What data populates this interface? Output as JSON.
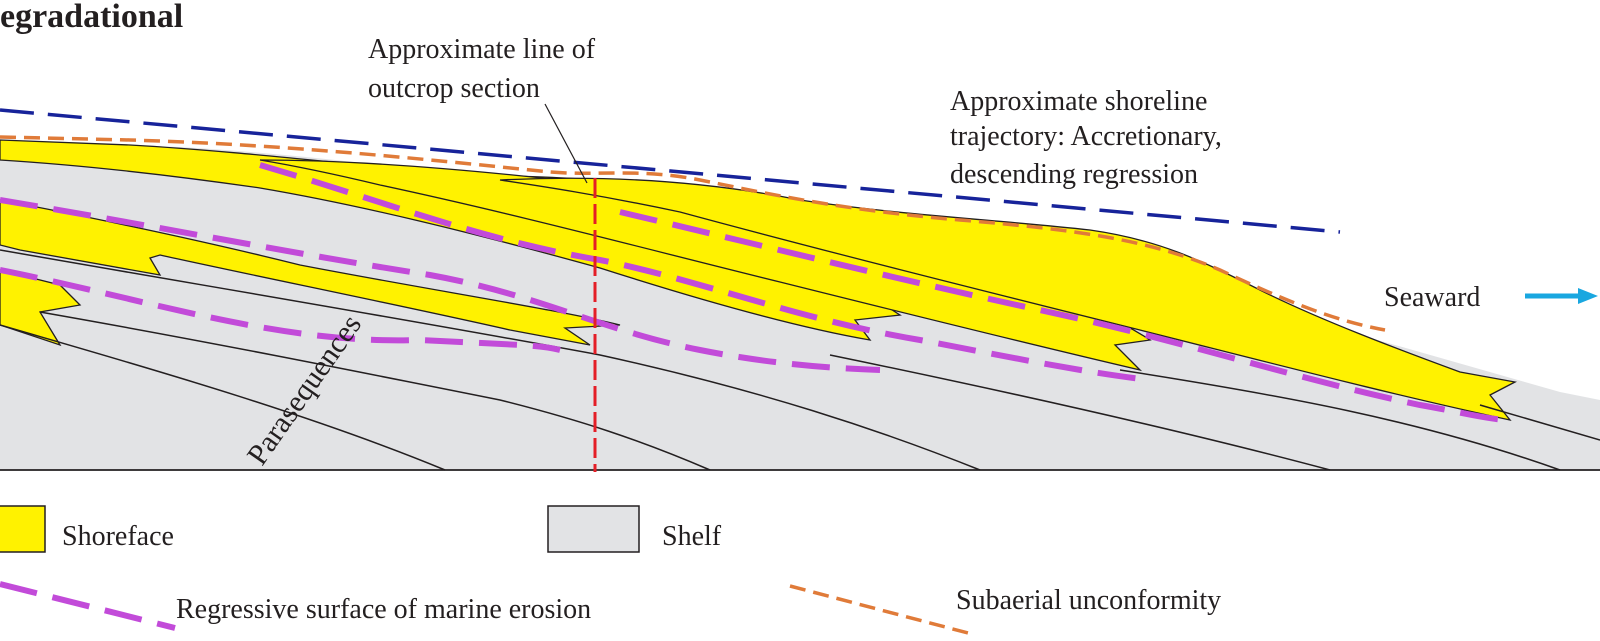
{
  "diagram": {
    "title": "egradational",
    "annotations": {
      "outcrop_line": [
        "Approximate line of",
        "outcrop section"
      ],
      "shoreline_trajectory": [
        "Approximate shoreline",
        "trajectory: Accretionary,",
        "descending regression"
      ],
      "seaward": "Seaward",
      "parasequences": "Parasequences"
    },
    "legend": {
      "shoreface": "Shoreface",
      "shelf": "Shelf",
      "rsme": "Regressive surface of marine erosion",
      "subaerial": "Subaerial unconformity"
    },
    "colors": {
      "shoreface": "#fff200",
      "shelf": "#e2e3e5",
      "rsme": "#c24bd9",
      "subaerial": "#e07b39",
      "trajectory": "#17239a",
      "outcrop": "#e41e26",
      "seaward_arrow": "#19a7e0",
      "outline": "#231f20"
    }
  }
}
